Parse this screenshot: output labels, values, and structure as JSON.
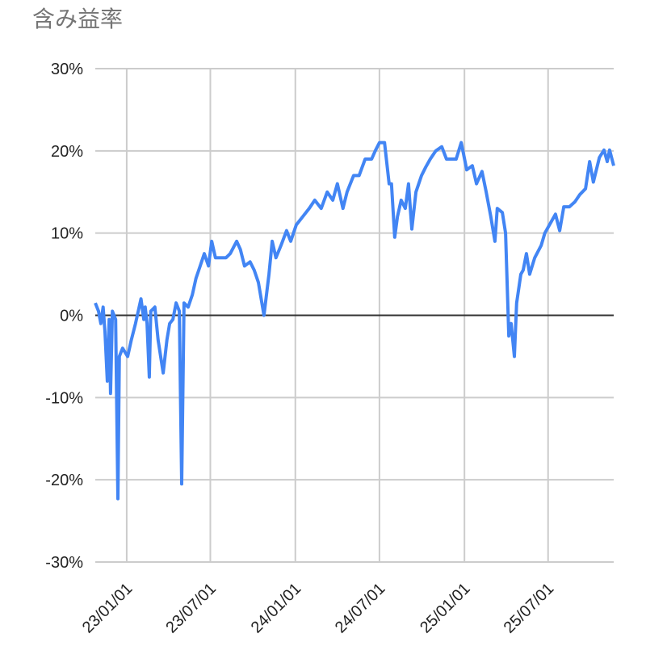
{
  "chart_data": {
    "type": "line",
    "title": "含み益率",
    "xlabel": "",
    "ylabel": "",
    "x_type": "date",
    "xlim": [
      "2022-10-25",
      "2025-11-20"
    ],
    "ylim": [
      -30,
      30
    ],
    "grid": true,
    "legend": "none",
    "colors": {
      "line": "#4285f4",
      "grid": "#cccccc",
      "zero_line": "#333333",
      "title": "#757575"
    },
    "y_ticks": [
      {
        "value": 30,
        "label": "30%"
      },
      {
        "value": 20,
        "label": "20%"
      },
      {
        "value": 10,
        "label": "10%"
      },
      {
        "value": 0,
        "label": "0%"
      },
      {
        "value": -10,
        "label": "-10%"
      },
      {
        "value": -20,
        "label": "-20%"
      },
      {
        "value": -30,
        "label": "-30%"
      }
    ],
    "x_ticks": [
      {
        "date": "2023-01-01",
        "label": "23/01/01"
      },
      {
        "date": "2023-07-01",
        "label": "23/07/01"
      },
      {
        "date": "2024-01-01",
        "label": "24/01/01"
      },
      {
        "date": "2024-07-01",
        "label": "24/07/01"
      },
      {
        "date": "2025-01-01",
        "label": "25/01/01"
      },
      {
        "date": "2025-07-01",
        "label": "25/07/01"
      }
    ],
    "series": [
      {
        "x": [
          "2022-10-25",
          "2022-11-01",
          "2022-11-06",
          "2022-11-11",
          "2022-11-15",
          "2022-11-20",
          "2022-11-24",
          "2022-11-27",
          "2022-12-01",
          "2022-12-08",
          "2022-12-13",
          "2022-12-16",
          "2022-12-23",
          "2023-01-03",
          "2023-01-11",
          "2023-01-20",
          "2023-02-01",
          "2023-02-07",
          "2023-02-10",
          "2023-02-14",
          "2023-02-19",
          "2023-02-22",
          "2023-03-03",
          "2023-03-10",
          "2023-03-21",
          "2023-03-29",
          "2023-04-04",
          "2023-04-11",
          "2023-04-18",
          "2023-04-25",
          "2023-04-30",
          "2023-05-05",
          "2023-05-14",
          "2023-05-23",
          "2023-05-31",
          "2023-06-09",
          "2023-06-18",
          "2023-06-27",
          "2023-07-04",
          "2023-07-12",
          "2023-07-21",
          "2023-08-04",
          "2023-08-13",
          "2023-08-27",
          "2023-09-04",
          "2023-09-13",
          "2023-09-25",
          "2023-10-04",
          "2023-10-13",
          "2023-10-25",
          "2023-11-05",
          "2023-11-12",
          "2023-11-20",
          "2023-12-01",
          "2023-12-13",
          "2023-12-22",
          "2024-01-03",
          "2024-01-17",
          "2024-01-31",
          "2024-02-12",
          "2024-02-26",
          "2024-03-10",
          "2024-03-22",
          "2024-04-01",
          "2024-04-13",
          "2024-04-22",
          "2024-05-06",
          "2024-05-18",
          "2024-05-31",
          "2024-06-14",
          "2024-06-22",
          "2024-07-01",
          "2024-07-12",
          "2024-07-22",
          "2024-07-27",
          "2024-08-03",
          "2024-08-09",
          "2024-08-17",
          "2024-08-26",
          "2024-09-02",
          "2024-09-09",
          "2024-09-18",
          "2024-09-30",
          "2024-10-09",
          "2024-10-19",
          "2024-10-31",
          "2024-11-13",
          "2024-11-23",
          "2024-12-05",
          "2024-12-14",
          "2024-12-25",
          "2025-01-06",
          "2025-01-18",
          "2025-01-27",
          "2025-02-08",
          "2025-02-17",
          "2025-02-27",
          "2025-03-08",
          "2025-03-13",
          "2025-03-24",
          "2025-03-31",
          "2025-04-07",
          "2025-04-12",
          "2025-04-19",
          "2025-04-24",
          "2025-05-03",
          "2025-05-08",
          "2025-05-15",
          "2025-05-22",
          "2025-06-02",
          "2025-06-16",
          "2025-06-24",
          "2025-07-07",
          "2025-07-17",
          "2025-07-26",
          "2025-08-04",
          "2025-08-16",
          "2025-08-28",
          "2025-09-08",
          "2025-09-20",
          "2025-09-29",
          "2025-10-07",
          "2025-10-20",
          "2025-10-30",
          "2025-11-06",
          "2025-11-11",
          "2025-11-20"
        ],
        "y": [
          1.5,
          0.5,
          -1,
          1,
          -2,
          -8,
          -0.5,
          -9.5,
          0.5,
          -0.5,
          -22.3,
          -5,
          -4,
          -5,
          -3,
          -1,
          2,
          -0.5,
          1,
          -1,
          -7.5,
          0.5,
          1,
          -3,
          -7,
          -3,
          -1,
          -0.5,
          1.5,
          0.5,
          -20.5,
          1.5,
          1,
          2.5,
          4.5,
          6,
          7.5,
          6,
          9,
          7,
          7,
          7,
          7.5,
          9,
          8,
          6,
          6.5,
          5.5,
          4,
          0,
          5,
          9,
          7,
          8.5,
          10.3,
          9,
          11,
          12,
          13,
          14,
          13,
          15,
          14,
          16,
          13,
          15,
          17,
          17,
          19,
          19,
          20,
          21,
          21,
          16,
          16,
          9.5,
          12,
          14,
          13,
          16,
          10.5,
          15,
          17,
          18,
          19,
          20,
          20.5,
          19,
          19,
          19,
          21,
          17.7,
          18.2,
          16,
          17.5,
          15,
          12,
          9,
          13,
          12.5,
          10,
          -2.5,
          -1,
          -5,
          1.5,
          5,
          5.5,
          7.5,
          5,
          7,
          8.5,
          10,
          11.3,
          12.3,
          10.3,
          13.2,
          13.2,
          13.8,
          14.7,
          15.4,
          18.7,
          16.2,
          19.2,
          20.1,
          18.7,
          20.1,
          18.2
        ]
      }
    ]
  }
}
